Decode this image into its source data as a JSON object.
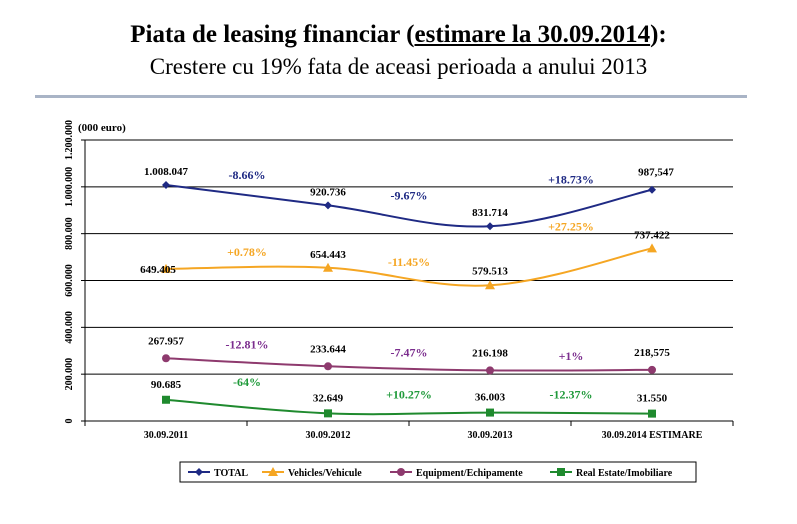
{
  "title": {
    "prefix": "Piata de leasing financiar (",
    "underlined": "estimare la 30.09.2014",
    "suffix": "):",
    "subtitle": "Crestere cu 19% fata de aceasi perioada a anului 2013"
  },
  "chart_data": {
    "type": "line",
    "unit_label": "(000 euro)",
    "categories": [
      "30.09.2011",
      "30.09.2012",
      "30.09.2013",
      "30.09.2014 ESTIMARE"
    ],
    "ylim": [
      0,
      1200000
    ],
    "yticks": [
      "0",
      "200.000",
      "400.000",
      "600.000",
      "800.000",
      "1.000.000",
      "1.200.000"
    ],
    "grid": true,
    "legend_position": "bottom",
    "series": [
      {
        "name": "TOTAL",
        "color": "#1f2a84",
        "marker": "diamond",
        "values": [
          1008047,
          920736,
          831714,
          987547
        ],
        "value_labels": [
          "1.008.047",
          "920.736",
          "831.714",
          "987,547"
        ],
        "changes": [
          "-8.66%",
          "-9.67%",
          "+18.73%"
        ],
        "change_color": "#1f2a84"
      },
      {
        "name": "Vehicles/Vehicule",
        "color": "#f5a623",
        "marker": "triangle",
        "values": [
          649405,
          654443,
          579513,
          737422
        ],
        "value_labels": [
          "649.405",
          "654.443",
          "579.513",
          "737.422"
        ],
        "changes": [
          "+0.78%",
          "-11.45%",
          "+27.25%"
        ],
        "change_color": "#f5a623"
      },
      {
        "name": "Equipment/Echipamente",
        "color": "#8e3a6e",
        "marker": "circle",
        "values": [
          267957,
          233644,
          216198,
          218575
        ],
        "value_labels": [
          "267.957",
          "233.644",
          "216.198",
          "218,575"
        ],
        "changes": [
          "-12.81%",
          "-7.47%",
          "+1%"
        ],
        "change_color": "#7b2d8e"
      },
      {
        "name": "Real Estate/Imobiliare",
        "color": "#1f8a2e",
        "marker": "square",
        "values": [
          90685,
          32649,
          36003,
          31550
        ],
        "value_labels": [
          "90.685",
          "32.649",
          "36.003",
          "31.550"
        ],
        "changes": [
          "-64%",
          "+10.27%",
          "-12.37%"
        ],
        "change_color": "#1f9a3a"
      }
    ]
  }
}
